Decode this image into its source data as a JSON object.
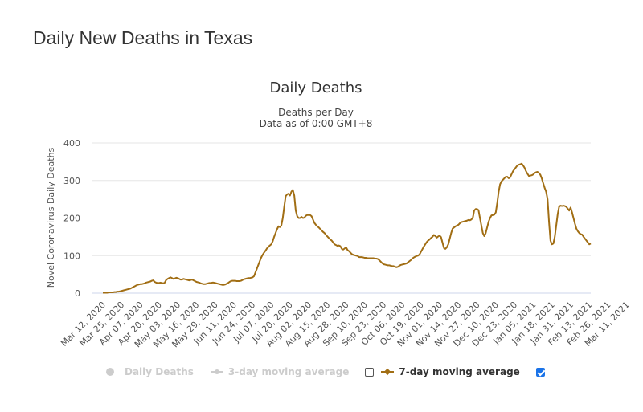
{
  "page": {
    "heading": "Daily New Deaths in Texas"
  },
  "chart": {
    "title": "Daily Deaths",
    "subtitle_line1": "Deaths per Day",
    "subtitle_line2": "Data as of 0:00 GMT+8"
  },
  "legend": {
    "items": [
      {
        "label": "Daily Deaths",
        "visible": false,
        "checkbox": false,
        "icon": "circle-dot-icon"
      },
      {
        "label": "3-day moving average",
        "visible": false,
        "checkbox": false,
        "icon": "line-circle-icon"
      },
      {
        "label": "7-day moving average",
        "visible": true,
        "checkbox": true,
        "icon": "line-diamond-icon"
      }
    ]
  },
  "colors": {
    "series": "#a16e14",
    "grid": "#e6e6e6",
    "legend_off": "#cccccc",
    "checkbox": "#1a73e8"
  },
  "chart_data": {
    "type": "line",
    "ylabel": "Novel Coronavirus Daily Deaths",
    "ylim": [
      0,
      400
    ],
    "yticks": [
      0,
      100,
      200,
      300,
      400
    ],
    "grid": true,
    "legend_position": "bottom",
    "x_tick_labels": [
      "Mar 12, 2020",
      "Mar 25, 2020",
      "Apr 07, 2020",
      "Apr 20, 2020",
      "May 03, 2020",
      "May 16, 2020",
      "May 29, 2020",
      "Jun 11, 2020",
      "Jun 24, 2020",
      "Jul 07, 2020",
      "Jul 20, 2020",
      "Aug 02, 2020",
      "Aug 15, 2020",
      "Aug 28, 2020",
      "Sep 10, 2020",
      "Sep 23, 2020",
      "Oct 06, 2020",
      "Oct 19, 2020",
      "Nov 01, 2020",
      "Nov 14, 2020",
      "Nov 27, 2020",
      "Dec 10, 2020",
      "Dec 23, 2020",
      "Jan 05, 2021",
      "Jan 18, 2021",
      "Jan 31, 2021",
      "Feb 13, 2021",
      "Feb 26, 2021",
      "Mar 11, 2021"
    ],
    "series": [
      {
        "name": "7-day moving average",
        "x_start": "Mar 12, 2020",
        "interval_days": 1,
        "values": [
          1,
          1,
          1,
          1,
          2,
          2,
          2,
          2,
          3,
          3,
          4,
          4,
          5,
          6,
          7,
          8,
          9,
          10,
          11,
          12,
          14,
          16,
          18,
          20,
          22,
          23,
          24,
          24,
          25,
          26,
          28,
          29,
          30,
          31,
          33,
          34,
          30,
          28,
          27,
          27,
          28,
          27,
          26,
          28,
          35,
          38,
          40,
          42,
          40,
          38,
          39,
          41,
          40,
          38,
          36,
          36,
          38,
          37,
          36,
          35,
          34,
          35,
          36,
          34,
          32,
          30,
          29,
          28,
          26,
          25,
          24,
          24,
          25,
          26,
          27,
          27,
          28,
          28,
          27,
          26,
          25,
          24,
          23,
          22,
          22,
          23,
          25,
          27,
          30,
          32,
          33,
          33,
          33,
          32,
          32,
          32,
          33,
          35,
          37,
          38,
          39,
          40,
          40,
          41,
          42,
          45,
          55,
          65,
          75,
          85,
          95,
          102,
          108,
          113,
          119,
          123,
          127,
          130,
          138,
          150,
          160,
          170,
          178,
          176,
          180,
          200,
          230,
          258,
          263,
          265,
          260,
          270,
          275,
          260,
          220,
          205,
          200,
          200,
          203,
          200,
          201,
          206,
          208,
          208,
          208,
          205,
          196,
          187,
          182,
          178,
          175,
          171,
          167,
          163,
          160,
          155,
          151,
          147,
          143,
          140,
          135,
          130,
          128,
          126,
          127,
          125,
          118,
          116,
          119,
          122,
          115,
          112,
          108,
          104,
          102,
          101,
          100,
          99,
          96,
          96,
          96,
          95,
          94,
          94,
          93,
          93,
          93,
          93,
          93,
          92,
          92,
          91,
          88,
          84,
          80,
          77,
          76,
          75,
          74,
          74,
          73,
          72,
          72,
          70,
          69,
          70,
          73,
          75,
          76,
          77,
          78,
          79,
          82,
          85,
          88,
          92,
          95,
          97,
          99,
          100,
          103,
          110,
          117,
          124,
          130,
          136,
          140,
          143,
          147,
          150,
          155,
          152,
          148,
          151,
          153,
          149,
          134,
          120,
          118,
          122,
          130,
          145,
          160,
          172,
          175,
          178,
          180,
          182,
          186,
          189,
          190,
          191,
          192,
          193,
          195,
          194,
          196,
          200,
          220,
          224,
          224,
          221,
          200,
          180,
          160,
          152,
          160,
          175,
          190,
          200,
          207,
          208,
          209,
          215,
          240,
          270,
          290,
          298,
          302,
          306,
          310,
          310,
          306,
          309,
          317,
          325,
          330,
          335,
          340,
          342,
          343,
          345,
          340,
          334,
          325,
          318,
          312,
          313,
          314,
          316,
          320,
          322,
          323,
          320,
          315,
          305,
          292,
          280,
          270,
          250,
          190,
          140,
          130,
          132,
          150,
          180,
          210,
          230,
          233,
          232,
          233,
          232,
          230,
          225,
          220,
          228,
          215,
          200,
          185,
          172,
          165,
          160,
          157,
          156,
          150,
          145,
          140,
          135,
          130,
          132
        ]
      }
    ]
  }
}
